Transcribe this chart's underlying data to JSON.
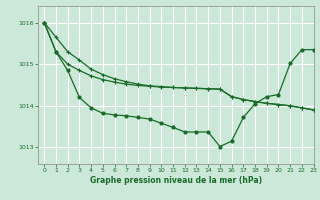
{
  "bg_color": "#cce8d8",
  "grid_color": "#ffffff",
  "line_color": "#1a6b2a",
  "xlabel": "Graphe pression niveau de la mer (hPa)",
  "xlabel_color": "#1a6b2a",
  "ylim": [
    1012.6,
    1016.4
  ],
  "xlim": [
    -0.5,
    23
  ],
  "yticks": [
    1013,
    1014,
    1015,
    1016
  ],
  "xticks": [
    0,
    1,
    2,
    3,
    4,
    5,
    6,
    7,
    8,
    9,
    10,
    11,
    12,
    13,
    14,
    15,
    16,
    17,
    18,
    19,
    20,
    21,
    22,
    23
  ],
  "line1_y": [
    1016.0,
    1015.65,
    1015.3,
    1015.1,
    1014.88,
    1014.75,
    1014.65,
    1014.58,
    1014.52,
    1014.48,
    1014.46,
    1014.44,
    1014.43,
    1014.42,
    1014.41,
    1014.4,
    1014.22,
    1014.15,
    1014.1,
    1014.06,
    1014.03,
    1014.0,
    1013.95,
    1013.9
  ],
  "line2_y": [
    1016.0,
    1015.3,
    1015.0,
    1014.85,
    1014.72,
    1014.63,
    1014.57,
    1014.52,
    1014.49,
    1014.47,
    1014.45,
    1014.44,
    1014.43,
    1014.42,
    1014.41,
    1014.4,
    1014.22,
    1014.15,
    1014.1,
    1014.06,
    1014.03,
    1014.0,
    1013.95,
    1013.9
  ],
  "ucurve_y": [
    1016.0,
    1015.3,
    1014.85,
    1014.2,
    1013.95,
    1013.82,
    1013.78,
    1013.76,
    1013.72,
    1013.68,
    1013.58,
    1013.48,
    1013.37,
    1013.37,
    1013.37,
    1013.02,
    1013.15,
    1013.72,
    1014.05,
    1014.22,
    1014.27,
    1015.02,
    1015.35,
    1015.35
  ],
  "ms1": 2.5,
  "ms2": 2.5,
  "ms3": 3.0,
  "lw": 0.9
}
